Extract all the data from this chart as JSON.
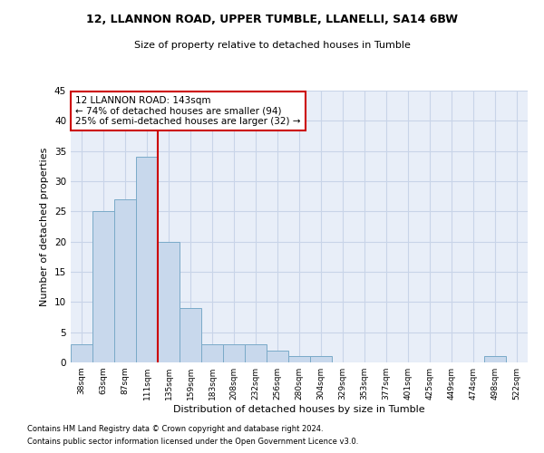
{
  "title1": "12, LLANNON ROAD, UPPER TUMBLE, LLANELLI, SA14 6BW",
  "title2": "Size of property relative to detached houses in Tumble",
  "xlabel": "Distribution of detached houses by size in Tumble",
  "ylabel": "Number of detached properties",
  "footnote1": "Contains HM Land Registry data © Crown copyright and database right 2024.",
  "footnote2": "Contains public sector information licensed under the Open Government Licence v3.0.",
  "categories": [
    "38sqm",
    "63sqm",
    "87sqm",
    "111sqm",
    "135sqm",
    "159sqm",
    "183sqm",
    "208sqm",
    "232sqm",
    "256sqm",
    "280sqm",
    "304sqm",
    "329sqm",
    "353sqm",
    "377sqm",
    "401sqm",
    "425sqm",
    "449sqm",
    "474sqm",
    "498sqm",
    "522sqm"
  ],
  "values": [
    3,
    25,
    27,
    34,
    20,
    9,
    3,
    3,
    3,
    2,
    1,
    1,
    0,
    0,
    0,
    0,
    0,
    0,
    0,
    1,
    0
  ],
  "bar_color": "#c8d8ec",
  "bar_edge_color": "#7aaac8",
  "vline_color": "#cc0000",
  "vline_x_index": 4,
  "annotation_text": "12 LLANNON ROAD: 143sqm\n← 74% of detached houses are smaller (94)\n25% of semi-detached houses are larger (32) →",
  "annotation_box_color": "white",
  "annotation_box_edge_color": "#cc0000",
  "ylim": [
    0,
    45
  ],
  "yticks": [
    0,
    5,
    10,
    15,
    20,
    25,
    30,
    35,
    40,
    45
  ],
  "grid_color": "#c8d4e8",
  "background_color": "#e8eef8"
}
